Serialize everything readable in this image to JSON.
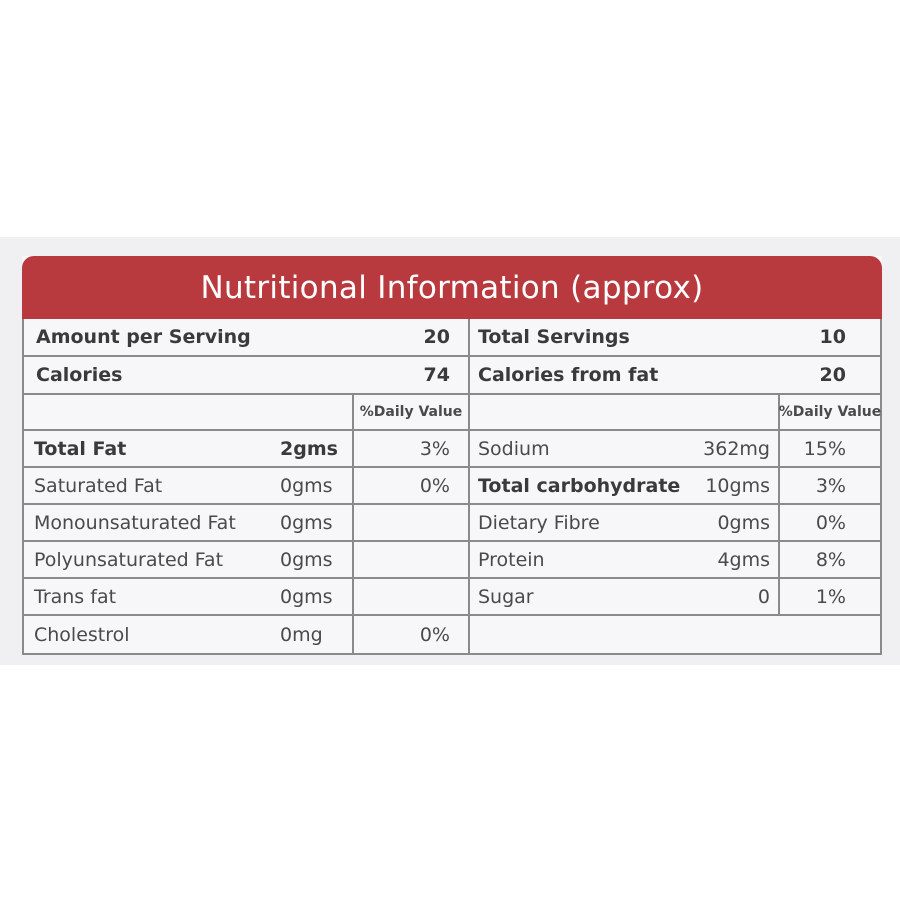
{
  "title": "Nutritional Information (approx)",
  "left": {
    "amount_per_serving": {
      "label": "Amount per Serving",
      "value": "20"
    },
    "calories": {
      "label": "Calories",
      "value": "74"
    },
    "dv_header": "%Daily Value",
    "rows": [
      {
        "name": "Total Fat",
        "amount": "2gms",
        "dv": "3%"
      },
      {
        "name": "Saturated Fat",
        "amount": "0gms",
        "dv": "0%"
      },
      {
        "name": "Monounsaturated Fat",
        "amount": "0gms",
        "dv": ""
      },
      {
        "name": "Polyunsaturated Fat",
        "amount": "0gms",
        "dv": ""
      },
      {
        "name": "Trans fat",
        "amount": "0gms",
        "dv": ""
      },
      {
        "name": "Cholestrol",
        "amount": "0mg",
        "dv": "0%"
      }
    ]
  },
  "right": {
    "total_servings": {
      "label": "Total Servings",
      "value": "10"
    },
    "calories_from_fat": {
      "label": "Calories from fat",
      "value": "20"
    },
    "dv_header": "%Daily Value",
    "rows": [
      {
        "name": "Sodium",
        "amount": "362mg",
        "dv": "15%"
      },
      {
        "name": "Total carbohydrate",
        "amount": "10gms",
        "dv": "3%"
      },
      {
        "name": "Dietary Fibre",
        "amount": "0gms",
        "dv": "0%"
      },
      {
        "name": "Protein",
        "amount": "4gms",
        "dv": "8%"
      },
      {
        "name": "Sugar",
        "amount": "0",
        "dv": "1%"
      }
    ]
  },
  "colors": {
    "header_bg": "#b83a3e",
    "border": "#8a8a8c",
    "text": "#4a4a4c"
  }
}
